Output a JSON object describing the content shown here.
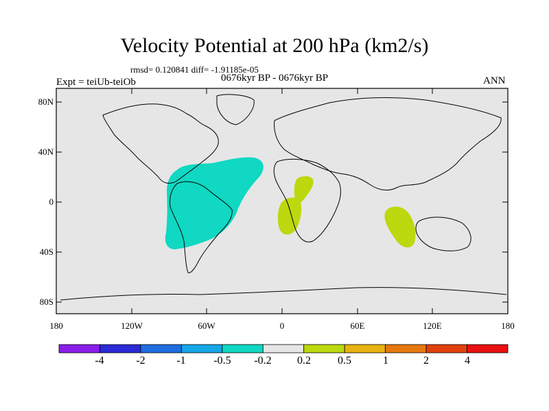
{
  "title": "Velocity Potential at 200 hPa (km2/s)",
  "stats": "rmsd= 0.120841 diff= -1.91185e-05",
  "period": "0676kyr BP - 0676kyr BP",
  "experiment": "Expt = teiUb-teiOb",
  "season": "ANN",
  "y_axis": {
    "labels": [
      "80N",
      "40N",
      "0",
      "40S",
      "80S"
    ]
  },
  "x_axis": {
    "labels": [
      "180",
      "120W",
      "60W",
      "0",
      "60E",
      "120E",
      "180"
    ]
  },
  "colorbar": {
    "labels": [
      "-4",
      "-2",
      "-1",
      "-0.5",
      "-0.2",
      "0.2",
      "0.5",
      "1",
      "2",
      "4"
    ],
    "colors": [
      "#8a1ee8",
      "#2a2ad6",
      "#1f6ee0",
      "#16a6e6",
      "#10d8c2",
      "#e6e6e6",
      "#bcd80e",
      "#e8b210",
      "#e67810",
      "#e0400c",
      "#e81010"
    ]
  },
  "map": {
    "ocean_color": "#e6e6e6",
    "regions": [
      {
        "name": "americas-atlantic-negative",
        "category": "-0.5 to -0.2",
        "color": "#10d8c2"
      },
      {
        "name": "africa-positive",
        "category": "0.2 to 0.5",
        "color": "#bcd80e"
      },
      {
        "name": "indian-ocean-positive",
        "category": "0.2 to 0.5",
        "color": "#bcd80e"
      }
    ]
  }
}
